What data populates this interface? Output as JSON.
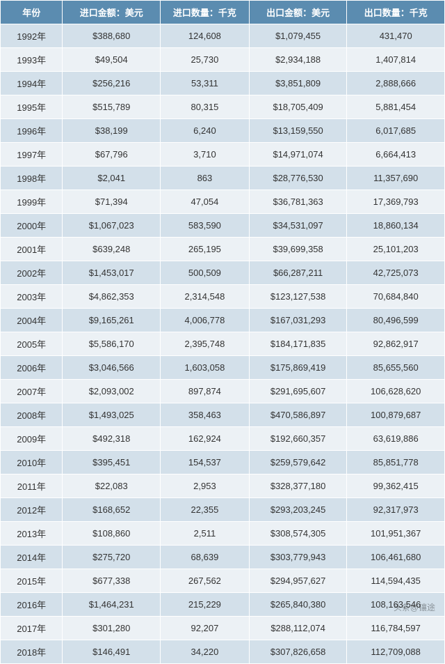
{
  "table": {
    "columns": [
      "年份",
      "进口金额：美元",
      "进口数量：千克",
      "出口金额：美元",
      "出口数量：千克"
    ],
    "col_widths": [
      "14%",
      "22%",
      "20%",
      "22%",
      "22%"
    ],
    "header_bg": "#5b8cb0",
    "header_fg": "#ffffff",
    "row_bg_odd": "#d3e0ea",
    "row_bg_even": "#ecf1f5",
    "border_color": "#ffffff",
    "fontsize_header": 13,
    "fontsize_cell": 13,
    "rows": [
      [
        "1992年",
        "$388,680",
        "124,608",
        "$1,079,455",
        "431,470"
      ],
      [
        "1993年",
        "$49,504",
        "25,730",
        "$2,934,188",
        "1,407,814"
      ],
      [
        "1994年",
        "$256,216",
        "53,311",
        "$3,851,809",
        "2,888,666"
      ],
      [
        "1995年",
        "$515,789",
        "80,315",
        "$18,705,409",
        "5,881,454"
      ],
      [
        "1996年",
        "$38,199",
        "6,240",
        "$13,159,550",
        "6,017,685"
      ],
      [
        "1997年",
        "$67,796",
        "3,710",
        "$14,971,074",
        "6,664,413"
      ],
      [
        "1998年",
        "$2,041",
        "863",
        "$28,776,530",
        "11,357,690"
      ],
      [
        "1999年",
        "$71,394",
        "47,054",
        "$36,781,363",
        "17,369,793"
      ],
      [
        "2000年",
        "$1,067,023",
        "583,590",
        "$34,531,097",
        "18,860,134"
      ],
      [
        "2001年",
        "$639,248",
        "265,195",
        "$39,699,358",
        "25,101,203"
      ],
      [
        "2002年",
        "$1,453,017",
        "500,509",
        "$66,287,211",
        "42,725,073"
      ],
      [
        "2003年",
        "$4,862,353",
        "2,314,548",
        "$123,127,538",
        "70,684,840"
      ],
      [
        "2004年",
        "$9,165,261",
        "4,006,778",
        "$167,031,293",
        "80,496,599"
      ],
      [
        "2005年",
        "$5,586,170",
        "2,395,748",
        "$184,171,835",
        "92,862,917"
      ],
      [
        "2006年",
        "$3,046,566",
        "1,603,058",
        "$175,869,419",
        "85,655,560"
      ],
      [
        "2007年",
        "$2,093,002",
        "897,874",
        "$291,695,607",
        "106,628,620"
      ],
      [
        "2008年",
        "$1,493,025",
        "358,463",
        "$470,586,897",
        "100,879,687"
      ],
      [
        "2009年",
        "$492,318",
        "162,924",
        "$192,660,357",
        "63,619,886"
      ],
      [
        "2010年",
        "$395,451",
        "154,537",
        "$259,579,642",
        "85,851,778"
      ],
      [
        "2011年",
        "$22,083",
        "2,953",
        "$328,377,180",
        "99,362,415"
      ],
      [
        "2012年",
        "$168,652",
        "22,355",
        "$293,203,245",
        "92,317,973"
      ],
      [
        "2013年",
        "$108,860",
        "2,511",
        "$308,574,305",
        "101,951,367"
      ],
      [
        "2014年",
        "$275,720",
        "68,639",
        "$303,779,943",
        "106,461,680"
      ],
      [
        "2015年",
        "$677,338",
        "267,562",
        "$294,957,627",
        "114,594,435"
      ],
      [
        "2016年",
        "$1,464,231",
        "215,229",
        "$265,840,380",
        "108,163,546"
      ],
      [
        "2017年",
        "$301,280",
        "92,207",
        "$288,112,074",
        "116,784,597"
      ],
      [
        "2018年",
        "$146,491",
        "34,220",
        "$307,826,658",
        "112,709,088"
      ]
    ]
  },
  "watermark": "头条@镶途"
}
